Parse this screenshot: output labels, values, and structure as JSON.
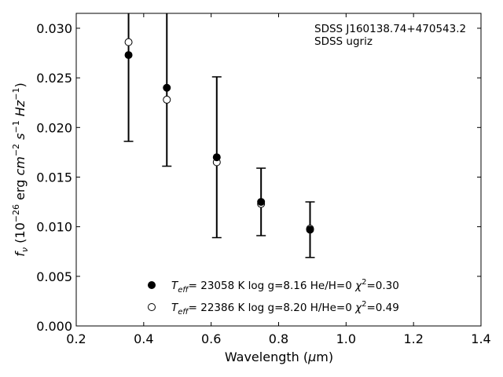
{
  "chart_data": {
    "type": "scatter",
    "annotation_lines": [
      "SDSS J160138.74+470543.2",
      "SDSS ugriz"
    ],
    "xlabel": {
      "main": "Wavelength (",
      "mu": "μ",
      "unit": "m)"
    },
    "ylabel": "f_ν (10^-26 erg cm^-2 s^-1 Hz^-1)",
    "xlim": [
      0.2,
      1.4
    ],
    "ylim": [
      0.0,
      0.0315
    ],
    "x_ticks": [
      0.2,
      0.4,
      0.6,
      0.8,
      1.0,
      1.2,
      1.4
    ],
    "x_tick_labels": [
      "0.2",
      "0.4",
      "0.6",
      "0.8",
      "1.0",
      "1.2",
      "1.4"
    ],
    "y_ticks": [
      0.0,
      0.005,
      0.01,
      0.015,
      0.02,
      0.025,
      0.03
    ],
    "y_tick_labels": [
      "0.000",
      "0.005",
      "0.010",
      "0.015",
      "0.020",
      "0.025",
      "0.030"
    ],
    "grid": false,
    "legend_position": "lower-center",
    "observed": {
      "x": [
        0.3551,
        0.4686,
        0.6166,
        0.748,
        0.8932
      ],
      "y": [
        0.0273,
        0.024,
        0.017,
        0.0125,
        0.0097
      ],
      "err": [
        0.0087,
        0.0079,
        0.0081,
        0.0034,
        0.0028
      ]
    },
    "series": [
      {
        "label": {
          "teff": "23058",
          "logg": "8.16",
          "comp": "He/H=0",
          "chi2": "0.30"
        },
        "marker": "filled-circle",
        "x": [
          0.3551,
          0.4686,
          0.6166,
          0.748,
          0.8932
        ],
        "y": [
          0.0273,
          0.024,
          0.017,
          0.0125,
          0.0097
        ]
      },
      {
        "label": {
          "teff": "22386",
          "logg": "8.20",
          "comp": "H/He=0",
          "chi2": "0.49"
        },
        "marker": "open-circle",
        "x": [
          0.3551,
          0.4686,
          0.6166,
          0.748,
          0.8932
        ],
        "y": [
          0.0286,
          0.0228,
          0.0165,
          0.0123,
          0.0098
        ]
      }
    ]
  }
}
